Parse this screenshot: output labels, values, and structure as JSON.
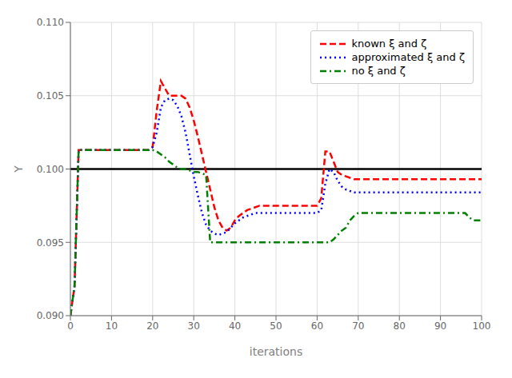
{
  "chart_data": {
    "type": "line",
    "xlabel": "iterations",
    "ylabel": "Y",
    "xlim": [
      0,
      100
    ],
    "ylim": [
      0.09,
      0.11
    ],
    "xticks": [
      0,
      10,
      20,
      30,
      40,
      50,
      60,
      70,
      80,
      90,
      100
    ],
    "yticks": [
      {
        "value": 0.09,
        "label": "0.090"
      },
      0.095,
      {
        "value": 0.1,
        "label": "0.100"
      },
      0.105,
      {
        "value": 0.11,
        "label": "0.110"
      }
    ],
    "grid": true,
    "legend": "upper right",
    "reference_line": {
      "y": 0.1,
      "color": "black"
    },
    "x": [
      0,
      1,
      2,
      3,
      4,
      5,
      6,
      7,
      8,
      9,
      10,
      11,
      12,
      13,
      14,
      15,
      16,
      17,
      18,
      19,
      20,
      21,
      22,
      23,
      24,
      25,
      26,
      27,
      28,
      29,
      30,
      31,
      32,
      33,
      34,
      35,
      36,
      37,
      38,
      39,
      40,
      41,
      42,
      43,
      44,
      45,
      46,
      47,
      48,
      49,
      50,
      51,
      52,
      53,
      54,
      55,
      56,
      57,
      58,
      59,
      60,
      61,
      62,
      63,
      64,
      65,
      66,
      67,
      68,
      69,
      70,
      71,
      72,
      73,
      74,
      75,
      76,
      77,
      78,
      79,
      80,
      81,
      82,
      83,
      84,
      85,
      86,
      87,
      88,
      89,
      90,
      91,
      92,
      93,
      94,
      95,
      96,
      97,
      98,
      99,
      100
    ],
    "series": [
      {
        "name": "known ξ and ζ",
        "color": "red",
        "line_style": "dashed",
        "values": [
          0.09,
          0.092,
          0.1013,
          0.1013,
          0.1013,
          0.1013,
          0.1013,
          0.1013,
          0.1013,
          0.1013,
          0.1013,
          0.1013,
          0.1013,
          0.1013,
          0.1013,
          0.1013,
          0.1013,
          0.1013,
          0.1013,
          0.1013,
          0.1015,
          0.104,
          0.106,
          0.1055,
          0.105,
          0.105,
          0.105,
          0.105,
          0.1048,
          0.1042,
          0.1033,
          0.1022,
          0.101,
          0.0998,
          0.0986,
          0.0974,
          0.0965,
          0.096,
          0.0958,
          0.096,
          0.0965,
          0.0968,
          0.097,
          0.0972,
          0.0973,
          0.0974,
          0.0975,
          0.0975,
          0.0975,
          0.0975,
          0.0975,
          0.0975,
          0.0975,
          0.0975,
          0.0975,
          0.0975,
          0.0975,
          0.0975,
          0.0975,
          0.0975,
          0.0975,
          0.098,
          0.1012,
          0.1012,
          0.1005,
          0.0998,
          0.0996,
          0.0995,
          0.0994,
          0.0993,
          0.0993,
          0.0993,
          0.0993,
          0.0993,
          0.0993,
          0.0993,
          0.0993,
          0.0993,
          0.0993,
          0.0993,
          0.0993,
          0.0993,
          0.0993,
          0.0993,
          0.0993,
          0.0993,
          0.0993,
          0.0993,
          0.0993,
          0.0993,
          0.0993,
          0.0993,
          0.0993,
          0.0993,
          0.0993,
          0.0993,
          0.0993,
          0.0993,
          0.0993,
          0.0993,
          0.0993
        ]
      },
      {
        "name": "approximated ξ and ζ",
        "color": "blue",
        "line_style": "dotted",
        "values": [
          0.09,
          0.092,
          0.1013,
          0.1013,
          0.1013,
          0.1013,
          0.1013,
          0.1013,
          0.1013,
          0.1013,
          0.1013,
          0.1013,
          0.1013,
          0.1013,
          0.1013,
          0.1013,
          0.1013,
          0.1013,
          0.1013,
          0.1013,
          0.1015,
          0.1025,
          0.1042,
          0.1047,
          0.1048,
          0.1047,
          0.1043,
          0.1036,
          0.1025,
          0.101,
          0.0995,
          0.0982,
          0.097,
          0.0962,
          0.0958,
          0.0956,
          0.0955,
          0.0956,
          0.0957,
          0.096,
          0.0963,
          0.0965,
          0.0967,
          0.0968,
          0.0969,
          0.097,
          0.097,
          0.097,
          0.097,
          0.097,
          0.097,
          0.097,
          0.097,
          0.097,
          0.097,
          0.097,
          0.097,
          0.097,
          0.097,
          0.097,
          0.097,
          0.0972,
          0.099,
          0.1,
          0.0998,
          0.0992,
          0.0988,
          0.0986,
          0.0985,
          0.0984,
          0.0984,
          0.0984,
          0.0984,
          0.0984,
          0.0984,
          0.0984,
          0.0984,
          0.0984,
          0.0984,
          0.0984,
          0.0984,
          0.0984,
          0.0984,
          0.0984,
          0.0984,
          0.0984,
          0.0984,
          0.0984,
          0.0984,
          0.0984,
          0.0984,
          0.0984,
          0.0984,
          0.0984,
          0.0984,
          0.0984,
          0.0984,
          0.0984,
          0.0984,
          0.0984,
          0.0984
        ]
      },
      {
        "name": "no ξ and ζ",
        "color": "green",
        "line_style": "dashdot",
        "values": [
          0.09,
          0.092,
          0.1013,
          0.1013,
          0.1013,
          0.1013,
          0.1013,
          0.1013,
          0.1013,
          0.1013,
          0.1013,
          0.1013,
          0.1013,
          0.1013,
          0.1013,
          0.1013,
          0.1013,
          0.1013,
          0.1013,
          0.1013,
          0.1013,
          0.1012,
          0.101,
          0.1008,
          0.1005,
          0.1003,
          0.1001,
          0.1,
          0.1,
          0.0999,
          0.0998,
          0.0998,
          0.0997,
          0.0996,
          0.095,
          0.095,
          0.095,
          0.095,
          0.095,
          0.095,
          0.095,
          0.095,
          0.095,
          0.095,
          0.095,
          0.095,
          0.095,
          0.095,
          0.095,
          0.095,
          0.095,
          0.095,
          0.095,
          0.095,
          0.095,
          0.095,
          0.095,
          0.095,
          0.095,
          0.095,
          0.095,
          0.095,
          0.095,
          0.095,
          0.0952,
          0.0955,
          0.0958,
          0.096,
          0.0965,
          0.0968,
          0.097,
          0.097,
          0.097,
          0.097,
          0.097,
          0.097,
          0.097,
          0.097,
          0.097,
          0.097,
          0.097,
          0.097,
          0.097,
          0.097,
          0.097,
          0.097,
          0.097,
          0.097,
          0.097,
          0.097,
          0.097,
          0.097,
          0.097,
          0.097,
          0.097,
          0.097,
          0.097,
          0.0967,
          0.0965,
          0.0965,
          0.0965
        ]
      }
    ]
  }
}
